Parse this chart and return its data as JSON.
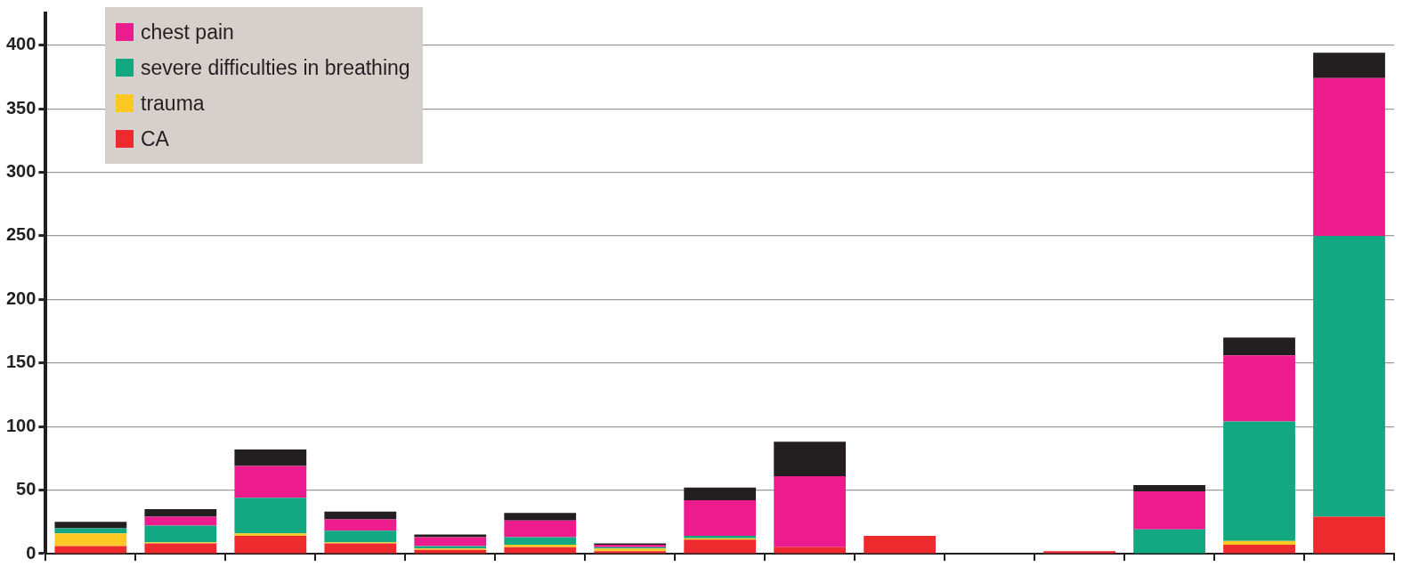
{
  "chart_data": {
    "type": "bar",
    "stacked": true,
    "categories": [
      null,
      null,
      null,
      null,
      null,
      null,
      null,
      null,
      null,
      null,
      null,
      null,
      null,
      null,
      null
    ],
    "series": [
      {
        "name": "CA",
        "color": "#ed2a2e",
        "values": [
          6,
          8,
          14,
          8,
          3,
          5,
          2,
          11,
          5,
          14,
          0,
          2,
          null,
          7,
          29
        ]
      },
      {
        "name": "trauma",
        "color": "#fcc824",
        "values": [
          10,
          1,
          2,
          1,
          1,
          2,
          2,
          1,
          0,
          0,
          0,
          0,
          0,
          3,
          0
        ]
      },
      {
        "name": "severe difficulties in breathing",
        "color": "#12a882",
        "values": [
          4,
          13,
          28,
          9,
          2,
          6,
          1,
          2,
          0,
          0,
          0,
          0,
          19,
          94,
          221
        ]
      },
      {
        "name": "chest pain",
        "color": "#ec1c8f",
        "values": [
          0,
          7,
          25,
          9,
          7,
          13,
          2,
          28,
          56,
          0,
          0,
          0,
          30,
          52,
          124
        ]
      },
      {
        "color": "#231f20",
        "values": [
          5,
          6,
          13,
          6,
          2,
          6,
          1,
          10,
          27,
          0,
          0,
          0,
          5,
          14,
          20
        ]
      }
    ],
    "ylim": [
      0,
      425
    ],
    "yticks": [
      0,
      50,
      100,
      150,
      200,
      250,
      300,
      350,
      400
    ],
    "grid": "y",
    "legend": "top left",
    "tick_labels": "y"
  }
}
